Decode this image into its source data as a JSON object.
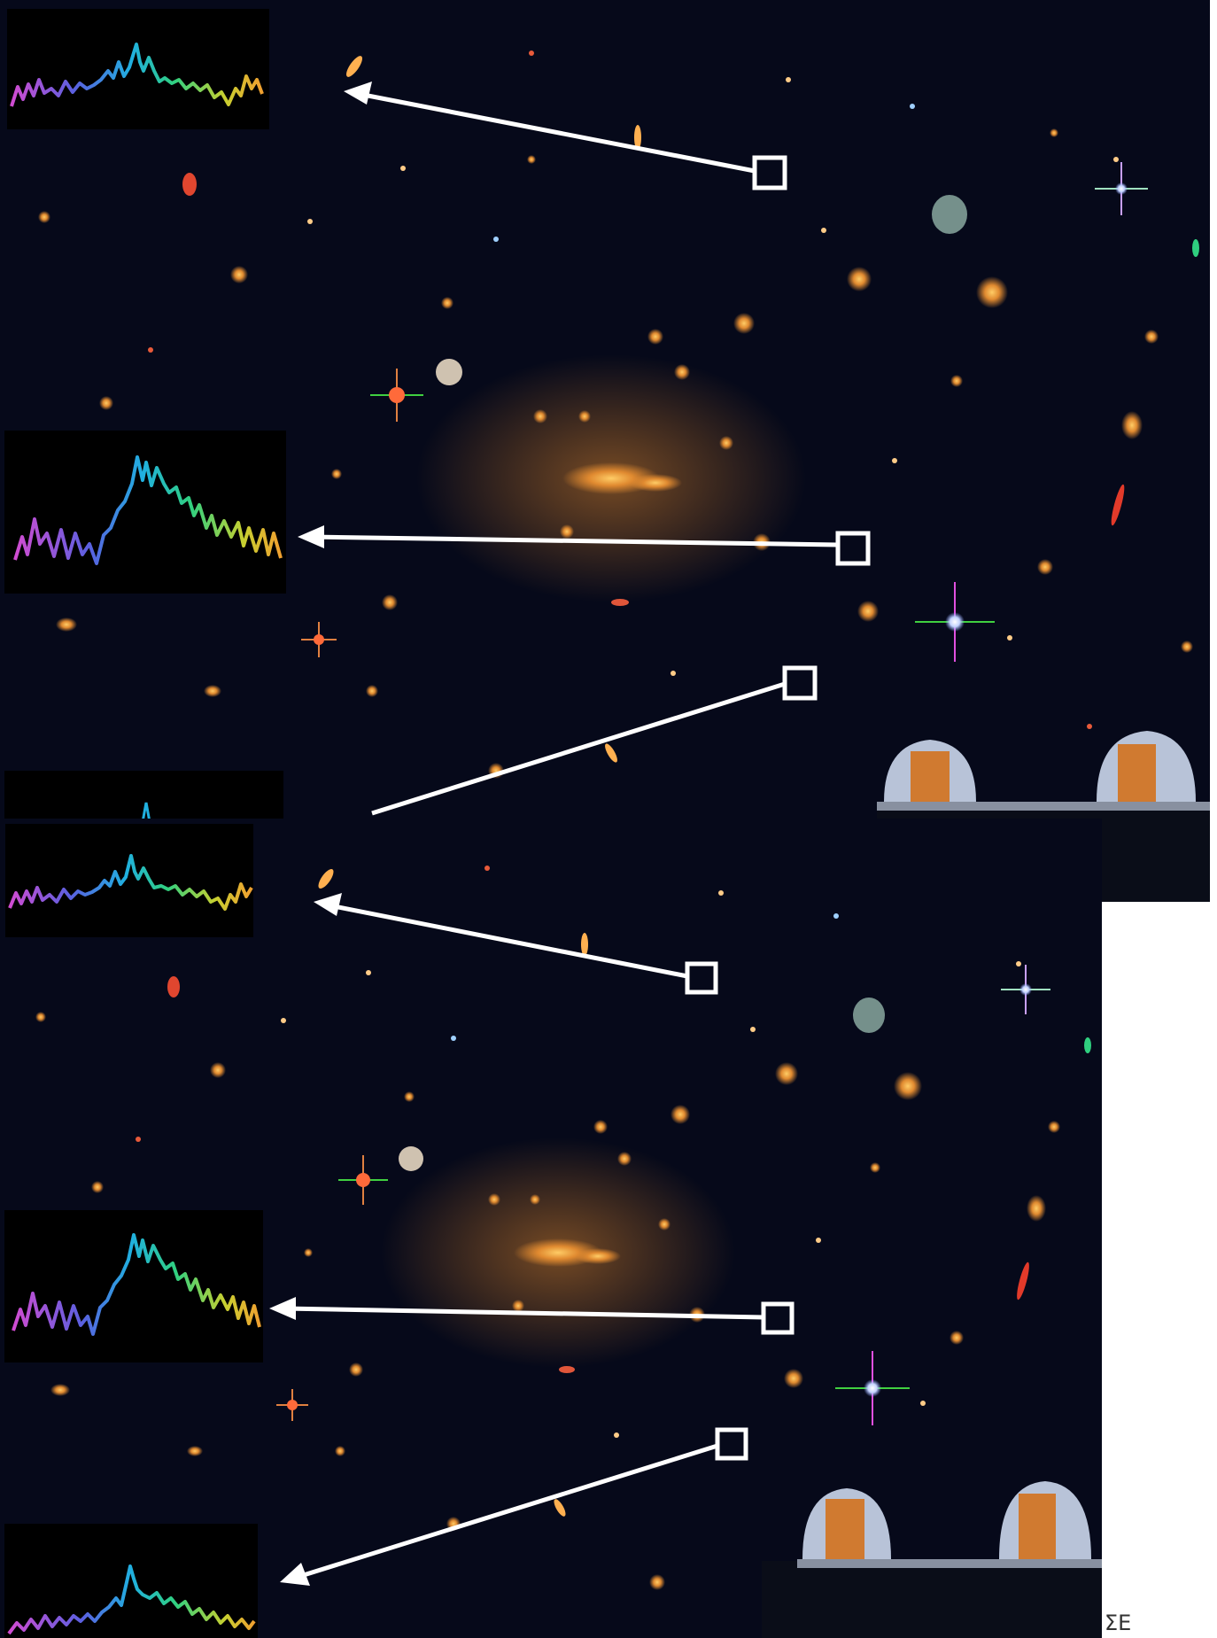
{
  "caption": "ΣΕ",
  "colors": {
    "sky": "#06091a",
    "marker": "#ffffff",
    "spectrum_gradient": [
      "#d14cd1",
      "#5a60e0",
      "#20b0e0",
      "#30d080",
      "#c8d030",
      "#f0a030"
    ]
  }
}
